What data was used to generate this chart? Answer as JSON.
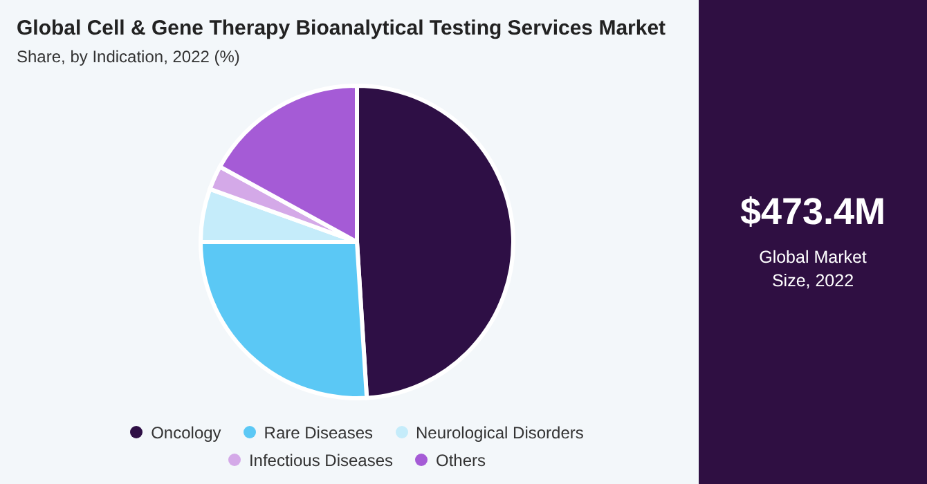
{
  "chart_data": {
    "type": "pie",
    "title": "Global Cell & Gene Therapy Bioanalytical Testing Services Market",
    "subtitle": "Share, by Indication, 2022 (%)",
    "categories": [
      "Oncology",
      "Rare Diseases",
      "Neurological Disorders",
      "Infectious Diseases",
      "Others"
    ],
    "values": [
      49,
      26,
      5.5,
      2.5,
      17
    ],
    "colors": [
      "#2e0f45",
      "#5bc8f5",
      "#c5ecfa",
      "#d4a9e8",
      "#a55bd6"
    ],
    "legend": "bottom",
    "annotations": [
      "$473.4M",
      "Global Market Size, 2022"
    ]
  }
}
